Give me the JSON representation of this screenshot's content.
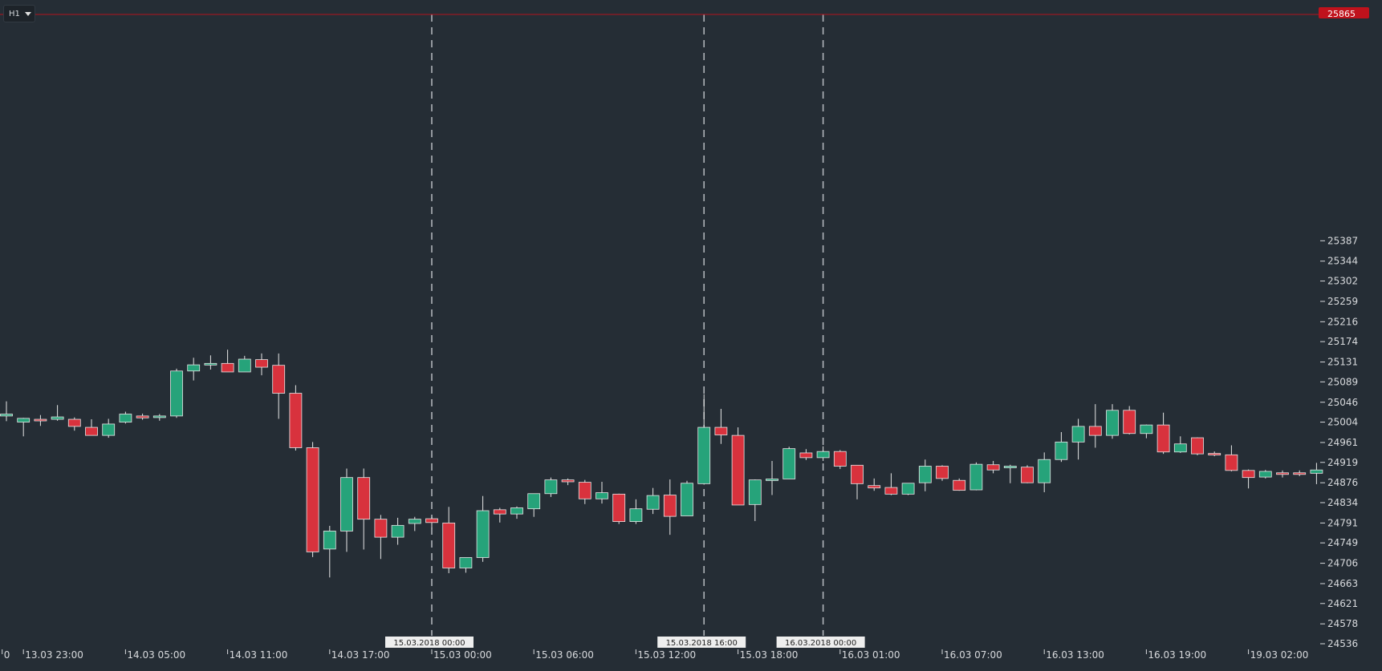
{
  "toolbar": {
    "timeframe": "H1"
  },
  "colors": {
    "background": "#252d35",
    "bullish": "#26a37a",
    "bearish": "#d8323d",
    "wick": "#e6e6e6",
    "axis_text": "#d8dadd",
    "current_price_line": "#b3121d",
    "current_price_badge": "#c0121c",
    "separator_line": "#b8bcc1",
    "date_label_bg": "#eeeeee",
    "date_label_text": "#222222"
  },
  "chart_data": {
    "type": "candlestick",
    "timeframe": "H1",
    "ylim": [
      24536,
      25865
    ],
    "current_price": "25865",
    "y_ticks": [
      "25387",
      "25344",
      "25302",
      "25259",
      "25216",
      "25174",
      "25131",
      "25089",
      "25046",
      "25004",
      "24961",
      "24919",
      "24876",
      "24834",
      "24791",
      "24749",
      "24706",
      "24663",
      "24621",
      "24578",
      "24536"
    ],
    "x_ticks": [
      {
        "label": "0",
        "index": -0.25
      },
      {
        "label": "13.03 23:00",
        "index": 1
      },
      {
        "label": "14.03 05:00",
        "index": 7
      },
      {
        "label": "14.03 11:00",
        "index": 13
      },
      {
        "label": "14.03 17:00",
        "index": 19
      },
      {
        "label": "15.03 00:00",
        "index": 25
      },
      {
        "label": "15.03 06:00",
        "index": 31
      },
      {
        "label": "15.03 12:00",
        "index": 37
      },
      {
        "label": "15.03 18:00",
        "index": 43
      },
      {
        "label": "16.03 01:00",
        "index": 49
      },
      {
        "label": "16.03 07:00",
        "index": 55
      },
      {
        "label": "16.03 13:00",
        "index": 61
      },
      {
        "label": "16.03 19:00",
        "index": 67
      },
      {
        "label": "19.03 02:00",
        "index": 73
      }
    ],
    "day_separators": [
      {
        "label": "15.03.2018 00:00",
        "index": 25
      },
      {
        "label": "15.03.2018 16:00",
        "index": 41
      },
      {
        "label": "16.03.2018 00:00",
        "index": 48
      }
    ],
    "candles": [
      {
        "o": 25017,
        "h": 25048,
        "l": 25006,
        "c": 25021
      },
      {
        "o": 25004,
        "h": 25013,
        "l": 24974,
        "c": 25012
      },
      {
        "o": 25010,
        "h": 25019,
        "l": 24996,
        "c": 25008
      },
      {
        "o": 25010,
        "h": 25040,
        "l": 25007,
        "c": 25015
      },
      {
        "o": 25010,
        "h": 25014,
        "l": 24986,
        "c": 24995
      },
      {
        "o": 24993,
        "h": 25010,
        "l": 24980,
        "c": 24976
      },
      {
        "o": 24976,
        "h": 25011,
        "l": 24971,
        "c": 25000
      },
      {
        "o": 25004,
        "h": 25026,
        "l": 25001,
        "c": 25021
      },
      {
        "o": 25017,
        "h": 25022,
        "l": 25009,
        "c": 25013
      },
      {
        "o": 25014,
        "h": 25021,
        "l": 25007,
        "c": 25017
      },
      {
        "o": 25017,
        "h": 25117,
        "l": 25013,
        "c": 25112
      },
      {
        "o": 25112,
        "h": 25140,
        "l": 25092,
        "c": 25125
      },
      {
        "o": 25125,
        "h": 25145,
        "l": 25115,
        "c": 25128
      },
      {
        "o": 25128,
        "h": 25157,
        "l": 25112,
        "c": 25110
      },
      {
        "o": 25110,
        "h": 25144,
        "l": 25110,
        "c": 25137
      },
      {
        "o": 25136,
        "h": 25149,
        "l": 25103,
        "c": 25120
      },
      {
        "o": 25124,
        "h": 25149,
        "l": 25011,
        "c": 25065
      },
      {
        "o": 25065,
        "h": 25082,
        "l": 24944,
        "c": 24950
      },
      {
        "o": 24950,
        "h": 24962,
        "l": 24719,
        "c": 24730
      },
      {
        "o": 24736,
        "h": 24785,
        "l": 24676,
        "c": 24774
      },
      {
        "o": 24774,
        "h": 24906,
        "l": 24730,
        "c": 24887
      },
      {
        "o": 24887,
        "h": 24906,
        "l": 24735,
        "c": 24799
      },
      {
        "o": 24799,
        "h": 24808,
        "l": 24715,
        "c": 24761
      },
      {
        "o": 24761,
        "h": 24802,
        "l": 24745,
        "c": 24786
      },
      {
        "o": 24790,
        "h": 24804,
        "l": 24774,
        "c": 24799
      },
      {
        "o": 24800,
        "h": 24804,
        "l": 24781,
        "c": 24792
      },
      {
        "o": 24791,
        "h": 24825,
        "l": 24685,
        "c": 24696
      },
      {
        "o": 24696,
        "h": 24714,
        "l": 24686,
        "c": 24718
      },
      {
        "o": 24718,
        "h": 24848,
        "l": 24709,
        "c": 24817
      },
      {
        "o": 24819,
        "h": 24823,
        "l": 24792,
        "c": 24810
      },
      {
        "o": 24810,
        "h": 24826,
        "l": 24800,
        "c": 24823
      },
      {
        "o": 24821,
        "h": 24842,
        "l": 24804,
        "c": 24853
      },
      {
        "o": 24853,
        "h": 24887,
        "l": 24846,
        "c": 24882
      },
      {
        "o": 24882,
        "h": 24885,
        "l": 24871,
        "c": 24878
      },
      {
        "o": 24877,
        "h": 24882,
        "l": 24831,
        "c": 24842
      },
      {
        "o": 24842,
        "h": 24878,
        "l": 24832,
        "c": 24855
      },
      {
        "o": 24852,
        "h": 24853,
        "l": 24789,
        "c": 24794
      },
      {
        "o": 24794,
        "h": 24841,
        "l": 24789,
        "c": 24821
      },
      {
        "o": 24820,
        "h": 24865,
        "l": 24810,
        "c": 24849
      },
      {
        "o": 24850,
        "h": 24883,
        "l": 24766,
        "c": 24805
      },
      {
        "o": 24806,
        "h": 24880,
        "l": 24806,
        "c": 24875
      },
      {
        "o": 24874,
        "h": 25063,
        "l": 24872,
        "c": 24993
      },
      {
        "o": 24993,
        "h": 25032,
        "l": 24958,
        "c": 24977
      },
      {
        "o": 24976,
        "h": 24993,
        "l": 24830,
        "c": 24829
      },
      {
        "o": 24830,
        "h": 24883,
        "l": 24795,
        "c": 24882
      },
      {
        "o": 24882,
        "h": 24922,
        "l": 24850,
        "c": 24884
      },
      {
        "o": 24884,
        "h": 24952,
        "l": 24884,
        "c": 24948
      },
      {
        "o": 24939,
        "h": 24947,
        "l": 24924,
        "c": 24929
      },
      {
        "o": 24929,
        "h": 24953,
        "l": 24922,
        "c": 24942
      },
      {
        "o": 24942,
        "h": 24945,
        "l": 24905,
        "c": 24911
      },
      {
        "o": 24913,
        "h": 24913,
        "l": 24841,
        "c": 24874
      },
      {
        "o": 24870,
        "h": 24885,
        "l": 24859,
        "c": 24865
      },
      {
        "o": 24866,
        "h": 24896,
        "l": 24850,
        "c": 24852
      },
      {
        "o": 24852,
        "h": 24874,
        "l": 24850,
        "c": 24875
      },
      {
        "o": 24876,
        "h": 24925,
        "l": 24858,
        "c": 24911
      },
      {
        "o": 24911,
        "h": 24913,
        "l": 24880,
        "c": 24885
      },
      {
        "o": 24881,
        "h": 24885,
        "l": 24859,
        "c": 24860
      },
      {
        "o": 24861,
        "h": 24919,
        "l": 24860,
        "c": 24915
      },
      {
        "o": 24914,
        "h": 24922,
        "l": 24896,
        "c": 24903
      },
      {
        "o": 24909,
        "h": 24914,
        "l": 24875,
        "c": 24911
      },
      {
        "o": 24909,
        "h": 24913,
        "l": 24875,
        "c": 24876
      },
      {
        "o": 24876,
        "h": 24940,
        "l": 24856,
        "c": 24925
      },
      {
        "o": 24925,
        "h": 24983,
        "l": 24920,
        "c": 24962
      },
      {
        "o": 24962,
        "h": 25011,
        "l": 24925,
        "c": 24995
      },
      {
        "o": 24995,
        "h": 25042,
        "l": 24950,
        "c": 24976
      },
      {
        "o": 24976,
        "h": 25042,
        "l": 24969,
        "c": 25029
      },
      {
        "o": 25029,
        "h": 25038,
        "l": 24978,
        "c": 24980
      },
      {
        "o": 24980,
        "h": 24999,
        "l": 24970,
        "c": 24998
      },
      {
        "o": 24998,
        "h": 25024,
        "l": 24937,
        "c": 24941
      },
      {
        "o": 24941,
        "h": 24974,
        "l": 24939,
        "c": 24958
      },
      {
        "o": 24971,
        "h": 24972,
        "l": 24934,
        "c": 24937
      },
      {
        "o": 24938,
        "h": 24942,
        "l": 24932,
        "c": 24935
      },
      {
        "o": 24935,
        "h": 24955,
        "l": 24900,
        "c": 24902
      },
      {
        "o": 24902,
        "h": 24904,
        "l": 24864,
        "c": 24887
      },
      {
        "o": 24888,
        "h": 24903,
        "l": 24885,
        "c": 24900
      },
      {
        "o": 24897,
        "h": 24902,
        "l": 24887,
        "c": 24895
      },
      {
        "o": 24897,
        "h": 24902,
        "l": 24890,
        "c": 24895
      },
      {
        "o": 24896,
        "h": 24918,
        "l": 24873,
        "c": 24903
      }
    ]
  }
}
